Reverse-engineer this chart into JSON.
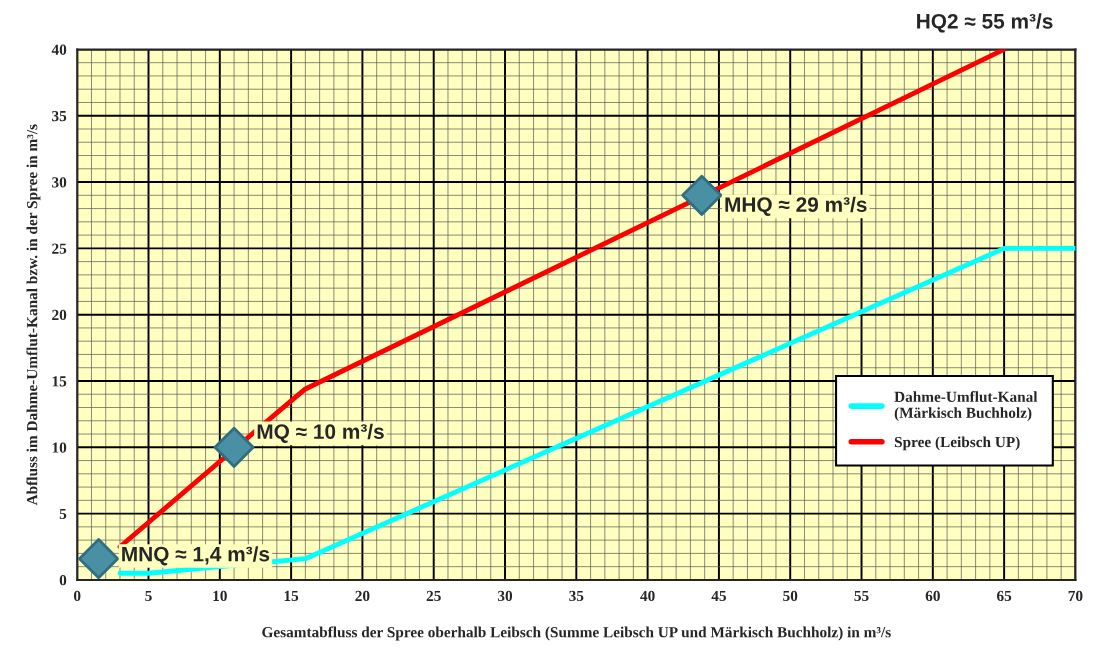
{
  "chart_data": {
    "type": "line",
    "xlabel": "Gesamtabfluss der Spree oberhalb Leibsch (Summe Leibsch UP und Märkisch Buchholz) in m³/s",
    "ylabel": "Abfluss im Dahme-Umflut-Kanal bzw. in der Spree in m³/s",
    "series": [
      {
        "name": "Dahme-Umflut-Kanal\n(Märkisch Buchholz)",
        "color": "#00ffff",
        "x": [
          3,
          5,
          10,
          16,
          65,
          70
        ],
        "values": [
          0.5,
          0.5,
          1.0,
          1.6,
          25,
          25
        ]
      },
      {
        "name": "Spree (Leibsch UP)",
        "color": "#ff0000",
        "x": [
          3,
          14,
          16,
          65
        ],
        "values": [
          2.5,
          12.6,
          14.4,
          40
        ]
      },
      {
        "type": "scatter",
        "marker": "diamond",
        "color": "#4a90a4",
        "x": [
          1.5,
          11,
          43.8
        ],
        "values": [
          1.6,
          10,
          29
        ]
      }
    ],
    "annotations": [
      {
        "text": "MNQ ≈ 1,4 m³/s",
        "x": 1.5,
        "y": 1.6
      },
      {
        "text": "MQ ≈ 10 m³/s",
        "x": 11,
        "y": 10
      },
      {
        "text": "MHQ ≈ 29 m³/s",
        "x": 43.8,
        "y": 29
      },
      "HQ2 ≈ 55 m³/s"
    ],
    "xlim": [
      0,
      70
    ],
    "ylim": [
      0,
      40
    ],
    "xticks": [
      0,
      5,
      10,
      15,
      20,
      25,
      30,
      35,
      40,
      45,
      50,
      55,
      60,
      65,
      70
    ],
    "yticks": [
      0,
      5,
      10,
      15,
      20,
      25,
      30,
      35,
      40
    ],
    "grid": true,
    "legend": "right"
  }
}
